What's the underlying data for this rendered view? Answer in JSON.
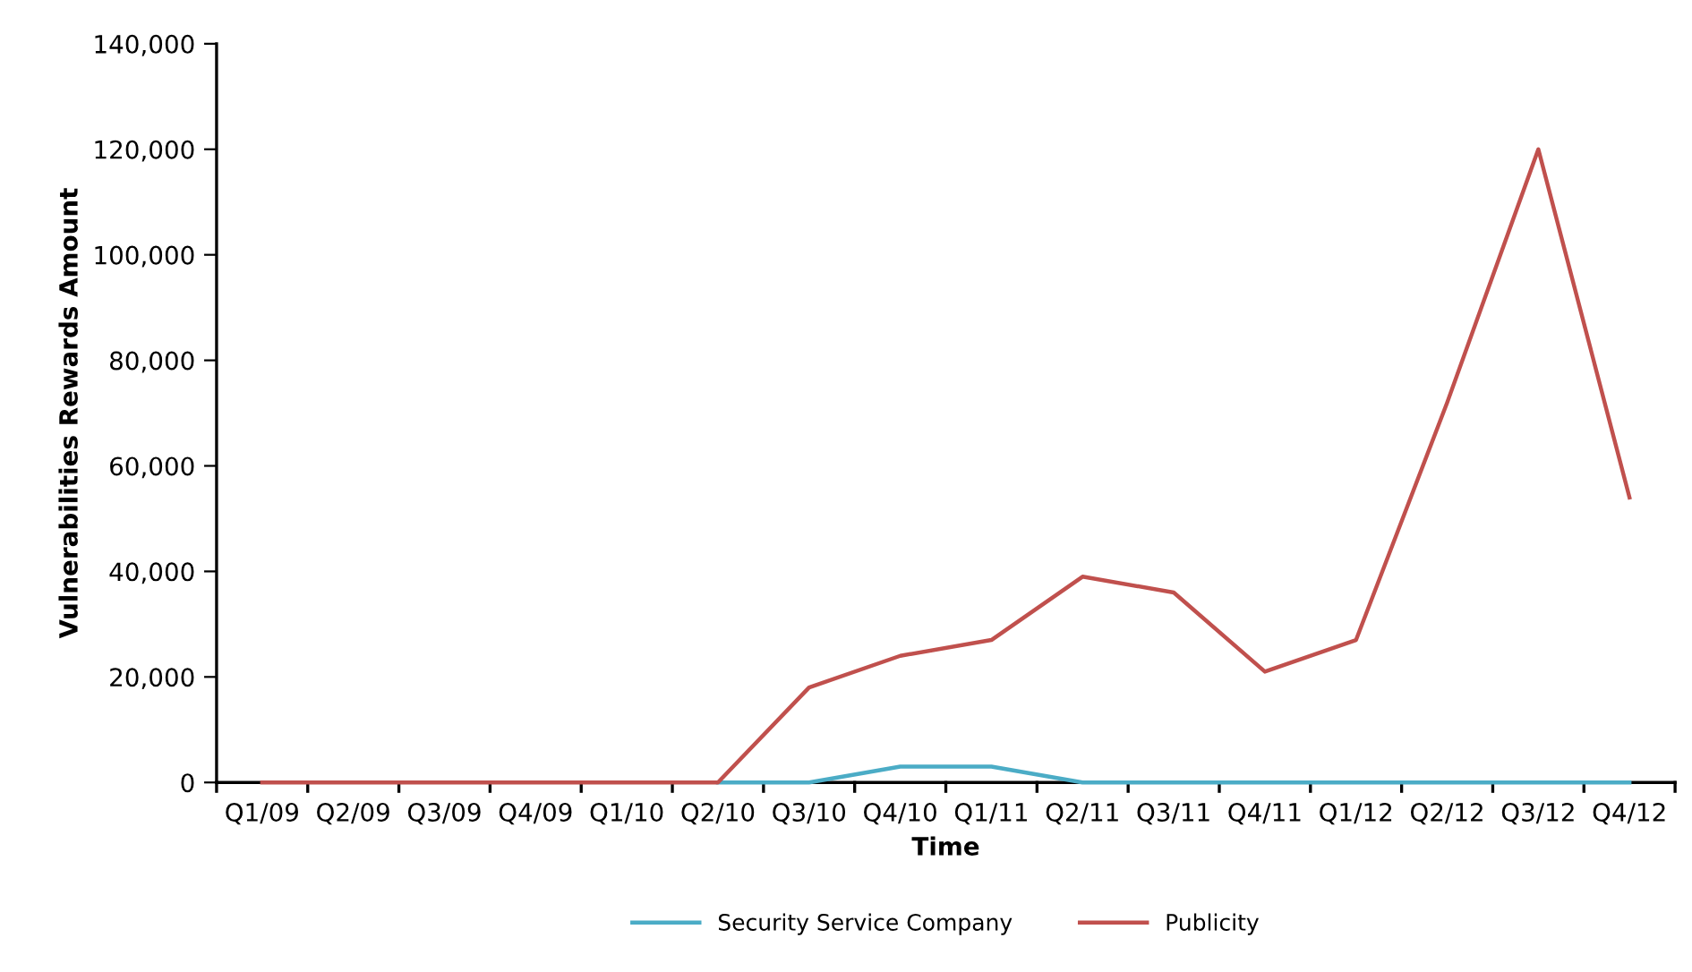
{
  "chart_data": {
    "type": "line",
    "xlabel": "Time",
    "ylabel": "Vulnerabilities Rewards Amount",
    "categories": [
      "Q1/09",
      "Q2/09",
      "Q3/09",
      "Q4/09",
      "Q1/10",
      "Q2/10",
      "Q3/10",
      "Q4/10",
      "Q1/11",
      "Q2/11",
      "Q3/11",
      "Q4/11",
      "Q1/12",
      "Q2/12",
      "Q3/12",
      "Q4/12"
    ],
    "series": [
      {
        "name": "Security Service Company",
        "color": "#4bacc6",
        "values": [
          null,
          null,
          null,
          null,
          null,
          0,
          0,
          3000,
          3000,
          0,
          0,
          0,
          0,
          0,
          0,
          0
        ]
      },
      {
        "name": "Publicity",
        "color": "#c0504d",
        "values": [
          0,
          0,
          0,
          0,
          0,
          0,
          18000,
          24000,
          27000,
          39000,
          36000,
          21000,
          27000,
          72000,
          120000,
          54000
        ]
      }
    ],
    "ylim": [
      0,
      140000
    ],
    "yticks": [
      {
        "value": 0,
        "label": "0"
      },
      {
        "value": 20000,
        "label": "20,000"
      },
      {
        "value": 40000,
        "label": "40,000"
      },
      {
        "value": 60000,
        "label": "60,000"
      },
      {
        "value": 80000,
        "label": "80,000"
      },
      {
        "value": 100000,
        "label": "100,000"
      },
      {
        "value": 120000,
        "label": "120,000"
      },
      {
        "value": 140000,
        "label": "140,000"
      }
    ],
    "grid": false,
    "legend": "bottom",
    "marker": "none",
    "line_style": "solid"
  }
}
